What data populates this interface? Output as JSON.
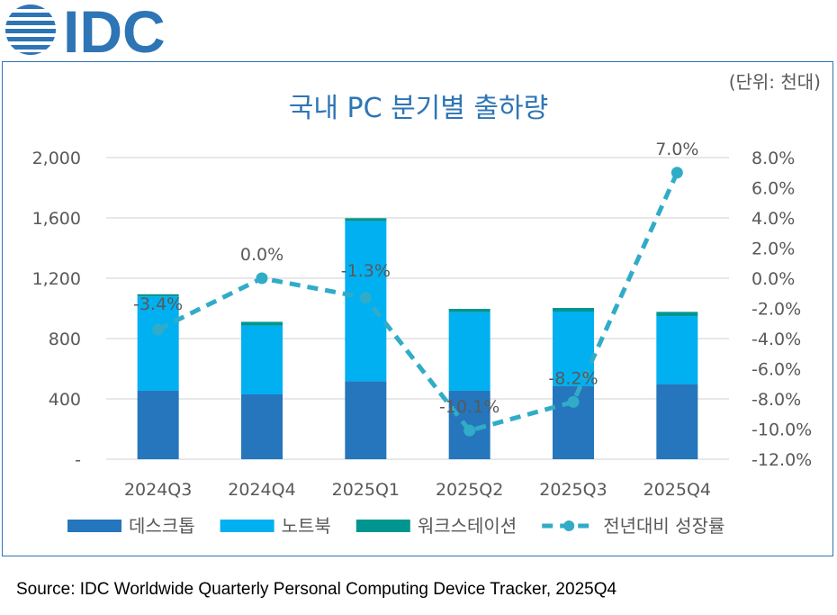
{
  "logo_text": "IDC",
  "source": "Source: IDC Worldwide Quarterly Personal Computing Device Tracker, 2025Q4",
  "colors": {
    "desktop": "#2576BC",
    "notebook": "#00B0F0",
    "workstation": "#00968F",
    "growth": "#31ACC8",
    "frame": "#2E75B6",
    "title": "#2E75B6"
  },
  "chart_data": {
    "type": "bar",
    "title": "국내 PC 분기별 출하량",
    "unit": "(단위: 천대)",
    "categories": [
      "2024Q3",
      "2024Q4",
      "2025Q1",
      "2025Q2",
      "2025Q3",
      "2025Q4"
    ],
    "stacked": true,
    "series": [
      {
        "name": "데스크톱",
        "values": [
          454,
          430,
          517,
          454,
          486,
          498
        ]
      },
      {
        "name": "노트북",
        "values": [
          625,
          456,
          1061,
          521,
          493,
          451
        ]
      },
      {
        "name": "워크스테이션",
        "values": [
          15,
          25,
          20,
          22,
          24,
          28
        ]
      }
    ],
    "line_series": {
      "name": "전년대비 성장률",
      "type": "line",
      "axis": "right",
      "values": [
        -3.4,
        0.0,
        -1.3,
        -10.1,
        -8.2,
        7.0
      ],
      "labels": [
        "-3.4%",
        "0.0%",
        "-1.3%",
        "-10.1%",
        "-8.2%",
        "7.0%"
      ]
    },
    "ylim": [
      0,
      2000
    ],
    "yticks": [
      "-",
      "400",
      "800",
      "1,200",
      "1,600",
      "2,000"
    ],
    "y2lim": [
      -12,
      8
    ],
    "y2ticks": [
      "-12.0%",
      "-10.0%",
      "-8.0%",
      "-6.0%",
      "-4.0%",
      "-2.0%",
      "0.0%",
      "2.0%",
      "4.0%",
      "6.0%",
      "8.0%"
    ],
    "grid": true,
    "legend": "bottom"
  }
}
